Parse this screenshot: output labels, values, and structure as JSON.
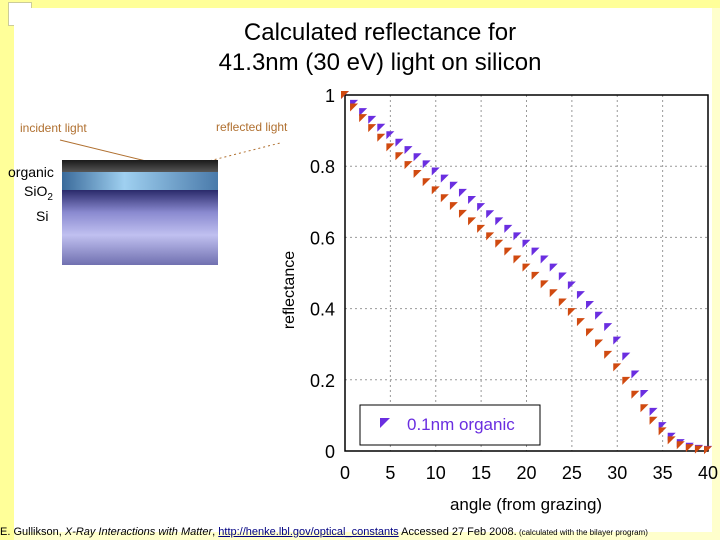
{
  "slide": {
    "title_line1": "Calculated reflectance for",
    "title_line2": "41.3nm (30 eV) light on silicon",
    "incident_label": "incident light",
    "reflected_label": "reflected light",
    "stack_labels": {
      "organic": "organic",
      "sio2": "SiO",
      "sio2_sub": "2",
      "si": "Si"
    },
    "footer": {
      "author": "E. Gullikson, ",
      "work": "X-Ray Interactions with Matter",
      "sep": ", ",
      "link": "http://henke.lbl.gov/optical_constants",
      "accessed": " Accessed 27 Feb 2008.",
      "note": " (calculated with the bilayer program)"
    }
  },
  "colors": {
    "series_purple": "#6a2ee0",
    "series_orange": "#d04a10",
    "label_brown": "#b07030",
    "background": "#ffffcc"
  },
  "chart_data": {
    "type": "scatter",
    "xlabel": "angle (from grazing)",
    "ylabel": "reflectance",
    "xlim": [
      0,
      40
    ],
    "ylim": [
      0,
      1
    ],
    "x_ticks": [
      "0",
      "5",
      "10",
      "15",
      "20",
      "25",
      "30",
      "35",
      "40"
    ],
    "y_ticks": [
      "0",
      "0.2",
      "0.4",
      "0.6",
      "0.8",
      "1"
    ],
    "grid": true,
    "legend_entries": [
      "0.1nm organic"
    ],
    "series": [
      {
        "name": "0.1nm organic",
        "color": "#6a2ee0",
        "x": [
          0,
          1,
          2,
          3,
          4,
          5,
          6,
          7,
          8,
          9,
          10,
          11,
          12,
          13,
          14,
          15,
          16,
          17,
          18,
          19,
          20,
          21,
          22,
          23,
          24,
          25,
          26,
          27,
          28,
          29,
          30,
          31,
          32,
          33,
          34,
          35,
          36,
          37,
          38,
          39,
          40
        ],
        "y": [
          1.0,
          0.975,
          0.952,
          0.93,
          0.908,
          0.887,
          0.866,
          0.845,
          0.825,
          0.805,
          0.785,
          0.765,
          0.745,
          0.725,
          0.705,
          0.685,
          0.665,
          0.645,
          0.624,
          0.603,
          0.582,
          0.56,
          0.538,
          0.515,
          0.49,
          0.465,
          0.438,
          0.41,
          0.38,
          0.348,
          0.31,
          0.265,
          0.215,
          0.16,
          0.11,
          0.07,
          0.04,
          0.022,
          0.012,
          0.006,
          0.003
        ]
      },
      {
        "color": "#d04a10",
        "x": [
          0,
          1,
          2,
          3,
          4,
          5,
          6,
          7,
          8,
          9,
          10,
          11,
          12,
          13,
          14,
          15,
          16,
          17,
          18,
          19,
          20,
          21,
          22,
          23,
          24,
          25,
          26,
          27,
          28,
          29,
          30,
          31,
          32,
          33,
          34,
          35,
          36,
          37,
          38,
          39,
          40
        ],
        "y": [
          1.0,
          0.965,
          0.935,
          0.907,
          0.88,
          0.853,
          0.828,
          0.803,
          0.778,
          0.755,
          0.732,
          0.71,
          0.688,
          0.666,
          0.645,
          0.624,
          0.603,
          0.582,
          0.56,
          0.538,
          0.515,
          0.492,
          0.468,
          0.443,
          0.417,
          0.39,
          0.362,
          0.333,
          0.302,
          0.27,
          0.235,
          0.197,
          0.158,
          0.12,
          0.085,
          0.055,
          0.03,
          0.016,
          0.008,
          0.004,
          0.002
        ]
      }
    ]
  }
}
